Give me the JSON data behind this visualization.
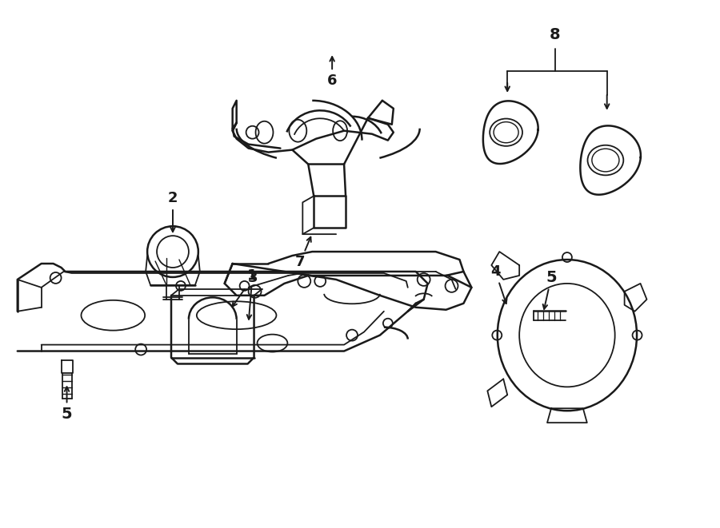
{
  "background_color": "#ffffff",
  "line_color": "#1a1a1a",
  "lw": 1.3,
  "lw2": 1.8,
  "fig_width": 9.0,
  "fig_height": 6.61,
  "dpi": 100
}
